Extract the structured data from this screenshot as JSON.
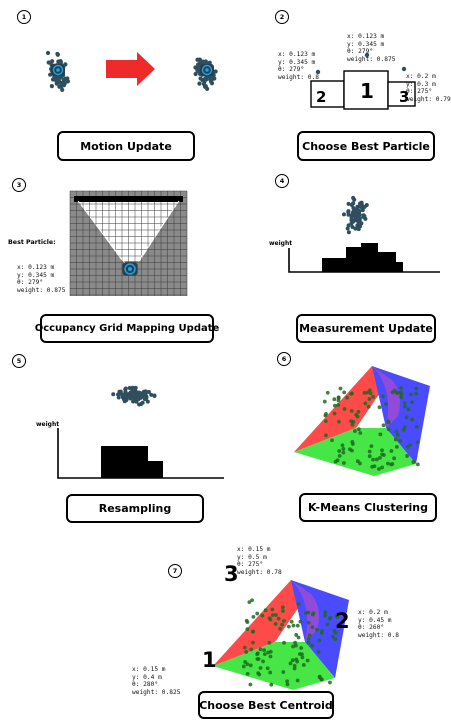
{
  "captions": {
    "motion": "Motion Update",
    "choose_particle": "Choose Best Particle",
    "occupancy": "Occupancy Grid Mapping Update",
    "measurement": "Measurement Update",
    "resampling": "Resampling",
    "kmeans": "K-Means Clustering",
    "choose_centroid": "Choose Best Centroid"
  },
  "steps": [
    "1",
    "2",
    "3",
    "4",
    "5",
    "6",
    "7"
  ],
  "particle_boxes": {
    "first": "1",
    "second": "2",
    "third": "3"
  },
  "particle_info": {
    "center": [
      "x: 0.123 m",
      "y: 0.345 m",
      "θ: 279°",
      "weight: 0.875"
    ],
    "left": [
      "x: 0.123 m",
      "y: 0.345 m",
      "θ: 279°",
      "weight: 0.8"
    ],
    "right": [
      "x: 0.2 m",
      "y: 0.3 m",
      "θ: 275°",
      "weight: 0.79"
    ]
  },
  "best_particle": {
    "title": "Best Particle:",
    "lines": [
      "x: 0.123 m",
      "y: 0.345 m",
      "θ: 279°",
      "weight: 0.875"
    ]
  },
  "weight_label": "weight",
  "centroid_ranks": {
    "top": "3",
    "right": "2",
    "bottom": "1"
  },
  "centroid_info": {
    "top": [
      "x: 0.15 m",
      "y: 0.5 m",
      "θ: 275°",
      "weight: 0.78"
    ],
    "right": [
      "x: 0.2 m",
      "y: 0.45 m",
      "θ: 260°",
      "weight: 0.8"
    ],
    "bottom": [
      "x: 0.15 m",
      "y: 0.4 m",
      "θ: 280°",
      "weight: 0.825"
    ]
  },
  "colors": {
    "particle": "#2f4f5f",
    "robot": "#2a3f4a",
    "robot_accent": "#1aa3e8",
    "arrow": "#ee2a2a",
    "cluster_red": "#ff4a4a",
    "cluster_green": "#45e645",
    "cluster_blue": "#4a4aff",
    "grid_bg": "#8a8a8a"
  }
}
